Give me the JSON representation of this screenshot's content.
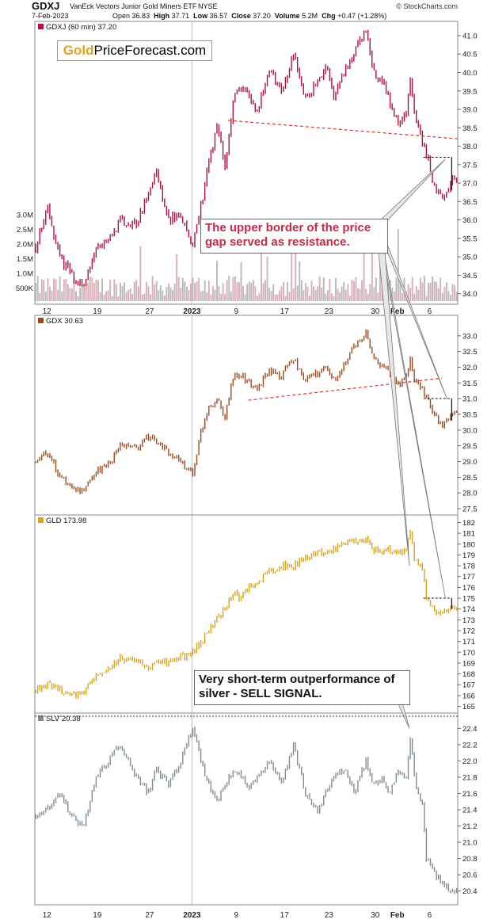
{
  "header": {
    "symbol": "GDXJ",
    "full_name": "VanEck Vectors Junior Gold Miners ETF",
    "exchange": "NYSE",
    "credit": "© StockCharts.com",
    "date": "7-Feb-2023",
    "open_label": "Open",
    "open": "36.83",
    "high_label": "High",
    "high": "37.71",
    "low_label": "Low",
    "low": "36.57",
    "close_label": "Close",
    "close": "37.20",
    "volume_label": "Volume",
    "volume": "5.2M",
    "chg_label": "Chg",
    "chg": "+0.47 (+1.28%)"
  },
  "watermark": {
    "part1": "Gold",
    "part2": "PriceForecast.com"
  },
  "annotations": {
    "resistance_note": "The upper border of the price gap served as resistance.",
    "sell_note": "Very short-term outperformance of silver - SELL SIGNAL."
  },
  "colors": {
    "gdxj": "#b0103c",
    "gdx": "#9a4a1e",
    "gld": "#d9a21c",
    "slv": "#7f8c93",
    "volume": "#d9aeb8",
    "volume_alt": "#b9b9b9",
    "trend": "#e03030"
  },
  "x_axis": {
    "ticks": [
      "12",
      "19",
      "27",
      "2023",
      "9",
      "17",
      "23",
      "30",
      "Feb",
      "6"
    ],
    "tick_index": [
      6,
      31,
      57,
      78,
      100,
      124,
      146,
      169,
      180,
      196
    ],
    "n_bars": 210
  },
  "chart_data": [
    {
      "type": "line",
      "title": "GDXJ (60 min) 37.20",
      "series": [
        {
          "name": "GDXJ",
          "anchors": [
            [
              0,
              35.3
            ],
            [
              6,
              36.3
            ],
            [
              12,
              35.0
            ],
            [
              18,
              34.5
            ],
            [
              24,
              34.2
            ],
            [
              30,
              35.3
            ],
            [
              36,
              35.4
            ],
            [
              42,
              36.0
            ],
            [
              50,
              35.9
            ],
            [
              56,
              36.7
            ],
            [
              60,
              37.3
            ],
            [
              66,
              36.0
            ],
            [
              72,
              36.1
            ],
            [
              78,
              35.3
            ],
            [
              82,
              36.4
            ],
            [
              86,
              37.5
            ],
            [
              90,
              38.6
            ],
            [
              94,
              37.4
            ],
            [
              98,
              39.2
            ],
            [
              102,
              39.7
            ],
            [
              106,
              39.3
            ],
            [
              110,
              39.0
            ],
            [
              116,
              40.0
            ],
            [
              122,
              39.5
            ],
            [
              128,
              40.5
            ],
            [
              134,
              39.3
            ],
            [
              140,
              39.7
            ],
            [
              144,
              40.2
            ],
            [
              148,
              39.3
            ],
            [
              154,
              40.1
            ],
            [
              158,
              40.5
            ],
            [
              164,
              41.1
            ],
            [
              168,
              40.0
            ],
            [
              172,
              39.8
            ],
            [
              176,
              39.2
            ],
            [
              180,
              38.6
            ],
            [
              184,
              39.0
            ],
            [
              186,
              39.9
            ],
            [
              188,
              38.8
            ],
            [
              190,
              38.5
            ],
            [
              192,
              38.2
            ],
            [
              194,
              37.8
            ],
            [
              198,
              36.9
            ],
            [
              202,
              36.5
            ],
            [
              206,
              37.1
            ],
            [
              210,
              37.2
            ]
          ]
        }
      ],
      "ylim": [
        33.8,
        41.3
      ],
      "yticks": [
        "34.0",
        "34.5",
        "35.0",
        "35.5",
        "36.0",
        "36.5",
        "37.0",
        "37.5",
        "38.0",
        "38.5",
        "39.0",
        "39.5",
        "40.0",
        "40.5",
        "41.0"
      ],
      "volume": {
        "ticks": [
          "500K",
          "1.0M",
          "1.5M",
          "2.0M",
          "2.5M",
          "3.0M"
        ]
      }
    },
    {
      "type": "line",
      "title": "GDX 30.63",
      "series": [
        {
          "name": "GDX",
          "anchors": [
            [
              0,
              29.0
            ],
            [
              6,
              29.3
            ],
            [
              12,
              28.5
            ],
            [
              18,
              28.2
            ],
            [
              24,
              28.0
            ],
            [
              30,
              28.7
            ],
            [
              36,
              28.9
            ],
            [
              42,
              29.5
            ],
            [
              50,
              29.4
            ],
            [
              56,
              29.8
            ],
            [
              60,
              29.6
            ],
            [
              66,
              29.3
            ],
            [
              72,
              29.0
            ],
            [
              78,
              28.6
            ],
            [
              82,
              30.0
            ],
            [
              86,
              30.7
            ],
            [
              90,
              31.0
            ],
            [
              94,
              30.4
            ],
            [
              98,
              31.7
            ],
            [
              102,
              31.8
            ],
            [
              106,
              31.5
            ],
            [
              110,
              31.3
            ],
            [
              116,
              31.9
            ],
            [
              122,
              31.7
            ],
            [
              128,
              32.3
            ],
            [
              134,
              31.6
            ],
            [
              140,
              31.8
            ],
            [
              144,
              32.0
            ],
            [
              148,
              31.6
            ],
            [
              154,
              32.2
            ],
            [
              158,
              32.6
            ],
            [
              164,
              33.1
            ],
            [
              168,
              32.3
            ],
            [
              172,
              32.0
            ],
            [
              176,
              31.8
            ],
            [
              180,
              31.4
            ],
            [
              184,
              31.7
            ],
            [
              186,
              32.3
            ],
            [
              188,
              31.6
            ],
            [
              190,
              31.5
            ],
            [
              192,
              31.3
            ],
            [
              194,
              31.0
            ],
            [
              198,
              30.5
            ],
            [
              202,
              30.2
            ],
            [
              206,
              30.5
            ],
            [
              210,
              30.6
            ]
          ]
        }
      ],
      "ylim": [
        27.4,
        33.5
      ],
      "yticks": [
        "27.5",
        "28.0",
        "28.5",
        "29.0",
        "29.5",
        "30.0",
        "30.5",
        "31.0",
        "31.5",
        "32.0",
        "32.5",
        "33.0"
      ]
    },
    {
      "type": "line",
      "title": "GLD 173.98",
      "series": [
        {
          "name": "GLD",
          "anchors": [
            [
              0,
              166.5
            ],
            [
              6,
              167.0
            ],
            [
              12,
              166.5
            ],
            [
              18,
              166.0
            ],
            [
              24,
              166.3
            ],
            [
              30,
              168.0
            ],
            [
              36,
              168.5
            ],
            [
              42,
              169.5
            ],
            [
              50,
              169.0
            ],
            [
              56,
              168.7
            ],
            [
              60,
              169.2
            ],
            [
              66,
              169.0
            ],
            [
              72,
              169.5
            ],
            [
              78,
              170.0
            ],
            [
              82,
              171.0
            ],
            [
              86,
              172.0
            ],
            [
              90,
              173.0
            ],
            [
              94,
              174.0
            ],
            [
              98,
              175.5
            ],
            [
              102,
              175.0
            ],
            [
              106,
              176.0
            ],
            [
              110,
              176.5
            ],
            [
              116,
              177.5
            ],
            [
              122,
              178.0
            ],
            [
              128,
              178.0
            ],
            [
              134,
              178.7
            ],
            [
              140,
              179.3
            ],
            [
              144,
              178.8
            ],
            [
              148,
              179.5
            ],
            [
              154,
              180.0
            ],
            [
              158,
              180.3
            ],
            [
              164,
              180.5
            ],
            [
              168,
              179.5
            ],
            [
              172,
              179.3
            ],
            [
              176,
              179.5
            ],
            [
              180,
              179.0
            ],
            [
              184,
              179.5
            ],
            [
              186,
              181.0
            ],
            [
              188,
              178.8
            ],
            [
              190,
              178.0
            ],
            [
              192,
              177.8
            ],
            [
              194,
              174.8
            ],
            [
              198,
              174.0
            ],
            [
              202,
              173.5
            ],
            [
              206,
              174.2
            ],
            [
              210,
              174.0
            ]
          ]
        }
      ],
      "ylim": [
        164.6,
        182.4
      ],
      "yticks": [
        "165",
        "166",
        "167",
        "168",
        "169",
        "170",
        "171",
        "172",
        "173",
        "174",
        "175",
        "176",
        "177",
        "178",
        "179",
        "180",
        "181",
        "182"
      ]
    },
    {
      "type": "line",
      "title": "SLV 20.38",
      "series": [
        {
          "name": "SLV",
          "anchors": [
            [
              0,
              21.3
            ],
            [
              6,
              21.4
            ],
            [
              12,
              21.6
            ],
            [
              18,
              21.3
            ],
            [
              24,
              21.2
            ],
            [
              30,
              21.8
            ],
            [
              36,
              22.0
            ],
            [
              42,
              22.2
            ],
            [
              50,
              21.8
            ],
            [
              56,
              21.6
            ],
            [
              60,
              21.9
            ],
            [
              66,
              21.7
            ],
            [
              72,
              22.0
            ],
            [
              78,
              22.4
            ],
            [
              82,
              22.0
            ],
            [
              86,
              21.7
            ],
            [
              90,
              21.5
            ],
            [
              94,
              21.7
            ],
            [
              98,
              21.9
            ],
            [
              102,
              21.8
            ],
            [
              106,
              21.7
            ],
            [
              110,
              21.8
            ],
            [
              116,
              22.0
            ],
            [
              122,
              21.7
            ],
            [
              128,
              22.2
            ],
            [
              134,
              21.6
            ],
            [
              140,
              21.4
            ],
            [
              144,
              21.6
            ],
            [
              148,
              21.8
            ],
            [
              154,
              21.9
            ],
            [
              158,
              21.6
            ],
            [
              164,
              22.0
            ],
            [
              168,
              21.7
            ],
            [
              172,
              21.8
            ],
            [
              176,
              21.6
            ],
            [
              180,
              21.9
            ],
            [
              184,
              21.8
            ],
            [
              186,
              22.3
            ],
            [
              188,
              21.8
            ],
            [
              190,
              21.6
            ],
            [
              192,
              21.5
            ],
            [
              194,
              20.8
            ],
            [
              198,
              20.6
            ],
            [
              202,
              20.5
            ],
            [
              206,
              20.4
            ],
            [
              210,
              20.4
            ]
          ]
        }
      ],
      "ylim": [
        20.25,
        22.55
      ],
      "yticks": [
        "20.4",
        "20.6",
        "20.8",
        "21.0",
        "21.2",
        "21.4",
        "21.6",
        "21.8",
        "22.0",
        "22.2",
        "22.4"
      ]
    }
  ]
}
